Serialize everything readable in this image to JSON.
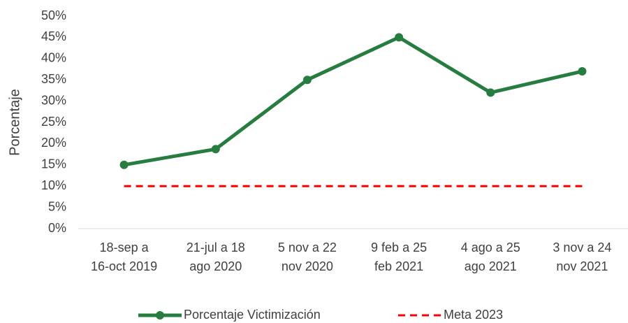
{
  "chart_data": {
    "type": "line",
    "y_label": "Porcentaje",
    "categories": [
      [
        "18-sep a",
        "16-oct 2019"
      ],
      [
        "21-jul a 18",
        "ago 2020"
      ],
      [
        "5 nov a 22",
        "nov 2020"
      ],
      [
        "9 feb a 25",
        "feb 2021"
      ],
      [
        "4 ago a 25",
        "ago 2021"
      ],
      [
        "3 nov a 24",
        "nov 2021"
      ]
    ],
    "series": [
      {
        "name": "Porcentaje Victimización",
        "color": "#267d3f",
        "style": "solid",
        "markers": true,
        "values": [
          15,
          18.7,
          35,
          45,
          32,
          37
        ]
      },
      {
        "name": "Meta 2023",
        "color": "#ff0000",
        "style": "dashed",
        "markers": false,
        "values": [
          10,
          10,
          10,
          10,
          10,
          10
        ]
      }
    ],
    "ylim": [
      0,
      50
    ],
    "yticks": [
      {
        "value": 0,
        "label": "0%"
      },
      {
        "value": 5,
        "label": "5%"
      },
      {
        "value": 10,
        "label": "10%"
      },
      {
        "value": 15,
        "label": "15%"
      },
      {
        "value": 20,
        "label": "20%"
      },
      {
        "value": 25,
        "label": "25%"
      },
      {
        "value": 30,
        "label": "30%"
      },
      {
        "value": 35,
        "label": "35%"
      },
      {
        "value": 40,
        "label": "40%"
      },
      {
        "value": 45,
        "label": "45%"
      },
      {
        "value": 50,
        "label": "50%"
      }
    ],
    "legend": "bottom"
  }
}
